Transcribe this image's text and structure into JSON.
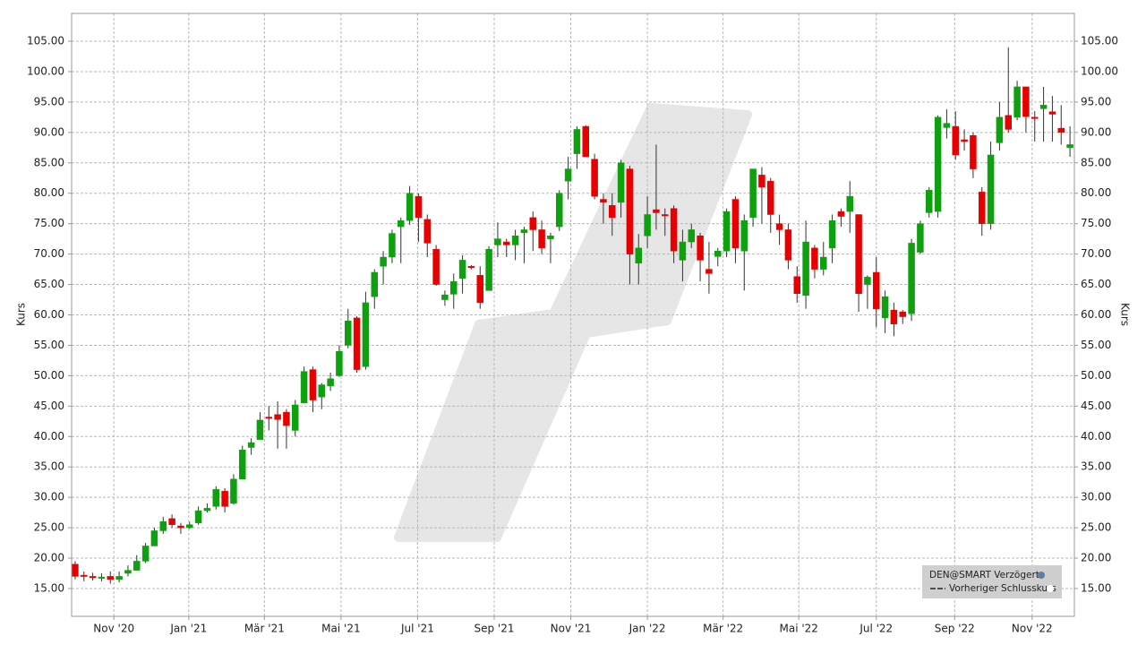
{
  "chart_data": {
    "type": "candlestick",
    "y_label": "Kurs",
    "y2_label": "Kurs",
    "legend": [
      "DEN@SMART Verzögert",
      "Vorheriger Schlusskurs"
    ],
    "up_color": "#0fa00f",
    "down_color": "#e80000",
    "grid": true,
    "xlim": [
      -0.4,
      113.5
    ],
    "xticks": [
      {
        "value": 4.4,
        "label": "Nov '20"
      },
      {
        "value": 12.9,
        "label": "Jan '21"
      },
      {
        "value": 21.5,
        "label": "Mär '21"
      },
      {
        "value": 30.2,
        "label": "Mai '21"
      },
      {
        "value": 38.9,
        "label": "Jul '21"
      },
      {
        "value": 47.6,
        "label": "Sep '21"
      },
      {
        "value": 56.3,
        "label": "Nov '21"
      },
      {
        "value": 65.0,
        "label": "Jan '22"
      },
      {
        "value": 73.6,
        "label": "Mär '22"
      },
      {
        "value": 82.2,
        "label": "Mai '22"
      },
      {
        "value": 91.0,
        "label": "Jul '22"
      },
      {
        "value": 99.9,
        "label": "Sep '22"
      },
      {
        "value": 108.7,
        "label": "Nov '22"
      }
    ],
    "ylim": [
      10.43,
      109.57
    ],
    "yticks": [
      {
        "value": 15,
        "label": "15.00"
      },
      {
        "value": 20,
        "label": "20.00"
      },
      {
        "value": 25,
        "label": "25.00"
      },
      {
        "value": 30,
        "label": "30.00"
      },
      {
        "value": 35,
        "label": "35.00"
      },
      {
        "value": 40,
        "label": "40.00"
      },
      {
        "value": 45,
        "label": "45.00"
      },
      {
        "value": 50,
        "label": "50.00"
      },
      {
        "value": 55,
        "label": "55.00"
      },
      {
        "value": 60,
        "label": "60.00"
      },
      {
        "value": 65,
        "label": "65.00"
      },
      {
        "value": 70,
        "label": "70.00"
      },
      {
        "value": 75,
        "label": "75.00"
      },
      {
        "value": 80,
        "label": "80.00"
      },
      {
        "value": 85,
        "label": "85.00"
      },
      {
        "value": 90,
        "label": "90.00"
      },
      {
        "value": 95,
        "label": "95.00"
      },
      {
        "value": 100,
        "label": "100.00"
      },
      {
        "value": 105,
        "label": "105.00"
      }
    ],
    "open": [
      19,
      17.2,
      17,
      16.8,
      17,
      16.5,
      17.5,
      18,
      19.5,
      22,
      24.5,
      26.5,
      25.3,
      25,
      25.8,
      27.8,
      28.5,
      31,
      29,
      33,
      38.2,
      39.5,
      43.2,
      43.6,
      44,
      41,
      45.5,
      51,
      46.5,
      48.3,
      50,
      55,
      59.5,
      51.5,
      63,
      68,
      69.5,
      74.5,
      75.5,
      79.5,
      75.7,
      70.8,
      62.5,
      63.4,
      66,
      68,
      66.5,
      64,
      71.5,
      72,
      71.5,
      73.5,
      76,
      74,
      72.5,
      74.5,
      82,
      86.5,
      91,
      85.6,
      79,
      78,
      78.5,
      84,
      68.5,
      73,
      77.3,
      76.5,
      77.5,
      69,
      72,
      73,
      67.5,
      69.6,
      70.5,
      79,
      70.5,
      76,
      83,
      82,
      75,
      74,
      66.3,
      63.2,
      71,
      67.5,
      71,
      77,
      77,
      76.5,
      65,
      67,
      59.5,
      60.8,
      60.5,
      60.2,
      70.3,
      76.8,
      77,
      90.8,
      91,
      88.8,
      89.5,
      80.2,
      75,
      88.3,
      92.8,
      92.5,
      97.5,
      92.5,
      93.9,
      93.4,
      90.7,
      87.5
    ],
    "high": [
      19.5,
      17.8,
      17.6,
      17.5,
      17.8,
      17.8,
      18.8,
      20.5,
      22.5,
      25,
      26.8,
      27.2,
      25.8,
      26,
      28.5,
      29,
      31.8,
      31.5,
      33.8,
      38.5,
      39.7,
      44,
      45,
      45.8,
      44.5,
      46,
      51.5,
      51.5,
      48.8,
      50.5,
      55,
      61,
      59.8,
      63.8,
      67.5,
      70.5,
      74,
      76,
      81.2,
      80,
      76.5,
      71.5,
      64,
      66.8,
      69.8,
      68.2,
      68,
      71.3,
      75.2,
      72.5,
      74,
      74.5,
      77,
      75.5,
      73.5,
      80.5,
      86,
      91,
      91.2,
      86.5,
      80,
      80,
      85.5,
      84.5,
      73.3,
      79.5,
      88,
      77.5,
      78,
      74,
      75,
      73.5,
      72,
      71,
      77.5,
      79.5,
      76.5,
      84,
      84.3,
      82.5,
      76.5,
      75,
      68,
      75.5,
      71.5,
      72,
      76.5,
      77.5,
      82,
      76.5,
      66.5,
      69.5,
      64,
      62,
      60.8,
      72.5,
      75.5,
      81,
      92.8,
      93.8,
      93.5,
      90.5,
      90,
      81,
      88.5,
      95,
      104,
      98.5,
      97.5,
      93.5,
      97.5,
      96,
      94.5,
      91
    ],
    "low": [
      16.5,
      16.2,
      16.3,
      16.2,
      15.8,
      16,
      17,
      18,
      19.2,
      22,
      24,
      25,
      24,
      24.8,
      25.5,
      27.5,
      28,
      27.5,
      28.8,
      33,
      37,
      40,
      41,
      38,
      38,
      40,
      45.8,
      44,
      44.5,
      47.5,
      49.8,
      54.5,
      50.5,
      51,
      61,
      65,
      68.5,
      68.5,
      74.8,
      72,
      69.5,
      64.8,
      61.5,
      61,
      63.5,
      67.5,
      61,
      64,
      69.5,
      69.5,
      69,
      68.5,
      70.5,
      70,
      68.5,
      73.8,
      79,
      84,
      86,
      79,
      75,
      73,
      76,
      65,
      65,
      71,
      74,
      73,
      68.5,
      65.5,
      71,
      65.5,
      63.5,
      68,
      69.5,
      68.5,
      64,
      74.5,
      75,
      73.5,
      71.5,
      67.5,
      62,
      61,
      66,
      66.5,
      68.5,
      74.5,
      73.5,
      60.5,
      61,
      58,
      57,
      56.5,
      58.5,
      59,
      70,
      76,
      76,
      89,
      85.5,
      87,
      82.5,
      73,
      74,
      87,
      90,
      92,
      90,
      88.5,
      88.5,
      88.5,
      88,
      86
    ],
    "close": [
      17,
      17,
      16.9,
      16.9,
      16.5,
      17,
      18,
      19.5,
      22,
      24.5,
      26,
      25.5,
      25,
      25.5,
      27.8,
      28.2,
      31.3,
      28.5,
      33,
      37.8,
      39,
      42.7,
      43,
      42.8,
      41.8,
      45.2,
      50.7,
      46,
      48.5,
      49.5,
      54,
      59,
      51,
      62,
      67,
      69.5,
      73.4,
      75.5,
      80,
      76,
      71.8,
      65,
      63.3,
      65.5,
      69,
      67.8,
      62,
      70.8,
      72.5,
      71.5,
      73,
      74,
      74,
      71,
      73,
      80,
      84,
      90.5,
      86,
      79.5,
      78.5,
      76,
      85,
      70,
      71,
      76.5,
      76.8,
      76.3,
      70.5,
      72,
      74,
      69,
      66.8,
      70.5,
      77,
      71,
      75.5,
      84,
      81,
      76.5,
      74,
      69,
      63.5,
      72,
      67.5,
      69.5,
      75.5,
      76.2,
      79.5,
      63.5,
      66.2,
      61,
      63,
      58.5,
      59.7,
      71.8,
      75,
      80.5,
      92.5,
      91.5,
      86.3,
      88.5,
      84,
      75,
      86.3,
      92.5,
      90.5,
      97.5,
      92.6,
      92.3,
      94.5,
      93,
      90,
      88
    ]
  }
}
